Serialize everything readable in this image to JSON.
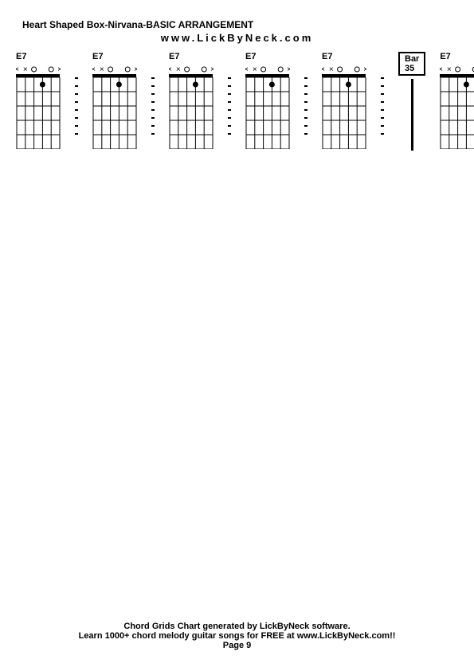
{
  "title": "Heart Shaped Box-Nirvana-BASIC ARRANGEMENT",
  "website": "www.LickByNeck.com",
  "chord_diagram": {
    "num_strings": 6,
    "num_frets": 5,
    "width": 54,
    "height": 90,
    "nut_height": 4,
    "stroke_color": "#000000",
    "stroke_width": 1
  },
  "string_markers": {
    "positions": [
      "x",
      "x",
      "o",
      "",
      "o",
      "x"
    ],
    "dot_fret": 1,
    "dot_string": 3,
    "dot_radius": 3.5,
    "font_size": 10
  },
  "chords": [
    {
      "name": "E7",
      "after_sep": true
    },
    {
      "name": "E7",
      "after_sep": true
    },
    {
      "name": "E7",
      "after_sep": true
    },
    {
      "name": "E7",
      "after_sep": true
    },
    {
      "name": "E7",
      "after_sep": true
    },
    {
      "name": "E7",
      "after_sep": false
    }
  ],
  "bar_marker": {
    "label": "Bar 35",
    "position_after_chord": 5
  },
  "separator": {
    "dash_count": 8
  },
  "footer": {
    "line1": "Chord Grids Chart generated by LickByNeck software.",
    "line2": "Learn 1000+ chord melody guitar songs for FREE at www.LickByNeck.com!!",
    "page": "Page 9"
  },
  "colors": {
    "background": "#ffffff",
    "text": "#000000",
    "stroke": "#000000"
  }
}
